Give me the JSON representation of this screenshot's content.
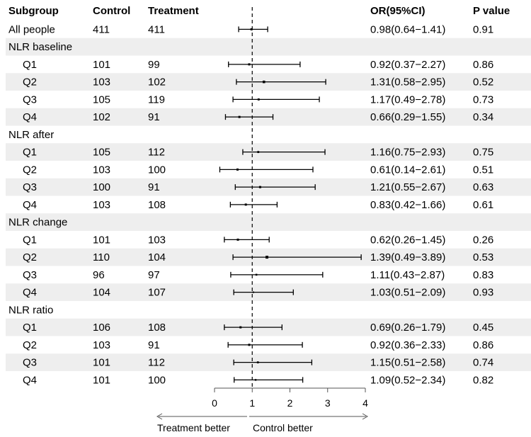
{
  "headers": {
    "subgroup": "Subgroup",
    "control": "Control",
    "treatment": "Treatment",
    "or_ci": "OR(95%CI)",
    "p_value": "P value"
  },
  "direction_labels": {
    "left": "Treatment better",
    "right": "Control better"
  },
  "colors": {
    "stripe": "#eeeeee",
    "mark": "#000000",
    "axis": "#555555"
  },
  "chart_data": {
    "type": "forest",
    "title": "",
    "xlabel": "",
    "reference_line": 1,
    "xlim": [
      0,
      4
    ],
    "xticks": [
      0,
      1,
      2,
      3,
      4
    ],
    "rows": [
      {
        "label": "All people",
        "indent": false,
        "control": "411",
        "treatment": "411",
        "or_ci": "0.98(0.64−1.41)",
        "p": "0.91",
        "or": 0.98,
        "lo": 0.64,
        "hi": 1.41,
        "shaded": false
      },
      {
        "label": "NLR baseline",
        "indent": false,
        "header": true,
        "shaded": true
      },
      {
        "label": "Q1",
        "indent": true,
        "control": "101",
        "treatment": "99",
        "or_ci": "0.92(0.37−2.27)",
        "p": "0.86",
        "or": 0.92,
        "lo": 0.37,
        "hi": 2.27,
        "shaded": false
      },
      {
        "label": "Q2",
        "indent": true,
        "control": "103",
        "treatment": "102",
        "or_ci": "1.31(0.58−2.95)",
        "p": "0.52",
        "or": 1.31,
        "lo": 0.58,
        "hi": 2.95,
        "shaded": true
      },
      {
        "label": "Q3",
        "indent": true,
        "control": "105",
        "treatment": "119",
        "or_ci": "1.17(0.49−2.78)",
        "p": "0.73",
        "or": 1.17,
        "lo": 0.49,
        "hi": 2.78,
        "shaded": false
      },
      {
        "label": "Q4",
        "indent": true,
        "control": "102",
        "treatment": "91",
        "or_ci": "0.66(0.29−1.55)",
        "p": "0.34",
        "or": 0.66,
        "lo": 0.29,
        "hi": 1.55,
        "shaded": true
      },
      {
        "label": "NLR after",
        "indent": false,
        "header": true,
        "shaded": false
      },
      {
        "label": "Q1",
        "indent": true,
        "control": "105",
        "treatment": "112",
        "or_ci": "1.16(0.75−2.93)",
        "p": "0.75",
        "or": 1.16,
        "lo": 0.75,
        "hi": 2.93,
        "shaded": true
      },
      {
        "label": "Q2",
        "indent": true,
        "control": "103",
        "treatment": "100",
        "or_ci": "0.61(0.14−2.61)",
        "p": "0.51",
        "or": 0.61,
        "lo": 0.14,
        "hi": 2.61,
        "shaded": false
      },
      {
        "label": "Q3",
        "indent": true,
        "control": "100",
        "treatment": "91",
        "or_ci": "1.21(0.55−2.67)",
        "p": "0.63",
        "or": 1.21,
        "lo": 0.55,
        "hi": 2.67,
        "shaded": true
      },
      {
        "label": "Q4",
        "indent": true,
        "control": "103",
        "treatment": "108",
        "or_ci": "0.83(0.42−1.66)",
        "p": "0.61",
        "or": 0.83,
        "lo": 0.42,
        "hi": 1.66,
        "shaded": false
      },
      {
        "label": "NLR change",
        "indent": false,
        "header": true,
        "shaded": true
      },
      {
        "label": "Q1",
        "indent": true,
        "control": "101",
        "treatment": "103",
        "or_ci": "0.62(0.26−1.45)",
        "p": "0.26",
        "or": 0.62,
        "lo": 0.26,
        "hi": 1.45,
        "shaded": false
      },
      {
        "label": "Q2",
        "indent": true,
        "control": "110",
        "treatment": "104",
        "or_ci": "1.39(0.49−3.89)",
        "p": "0.53",
        "or": 1.39,
        "lo": 0.49,
        "hi": 3.89,
        "shaded": true
      },
      {
        "label": "Q3",
        "indent": true,
        "control": "96",
        "treatment": "97",
        "or_ci": "1.11(0.43−2.87)",
        "p": "0.83",
        "or": 1.11,
        "lo": 0.43,
        "hi": 2.87,
        "shaded": false
      },
      {
        "label": "Q4",
        "indent": true,
        "control": "104",
        "treatment": "107",
        "or_ci": "1.03(0.51−2.09)",
        "p": "0.93",
        "or": 1.03,
        "lo": 0.51,
        "hi": 2.09,
        "shaded": true
      },
      {
        "label": "NLR ratio",
        "indent": false,
        "header": true,
        "shaded": false
      },
      {
        "label": "Q1",
        "indent": true,
        "control": "106",
        "treatment": "108",
        "or_ci": "0.69(0.26−1.79)",
        "p": "0.45",
        "or": 0.69,
        "lo": 0.26,
        "hi": 1.79,
        "shaded": true
      },
      {
        "label": "Q2",
        "indent": true,
        "control": "103",
        "treatment": "91",
        "or_ci": "0.92(0.36−2.33)",
        "p": "0.86",
        "or": 0.92,
        "lo": 0.36,
        "hi": 2.33,
        "shaded": false
      },
      {
        "label": "Q3",
        "indent": true,
        "control": "101",
        "treatment": "112",
        "or_ci": "1.15(0.51−2.58)",
        "p": "0.74",
        "or": 1.15,
        "lo": 0.51,
        "hi": 2.58,
        "shaded": true
      },
      {
        "label": "Q4",
        "indent": true,
        "control": "101",
        "treatment": "100",
        "or_ci": "1.09(0.52−2.34)",
        "p": "0.82",
        "or": 1.09,
        "lo": 0.52,
        "hi": 2.34,
        "shaded": false
      }
    ]
  }
}
